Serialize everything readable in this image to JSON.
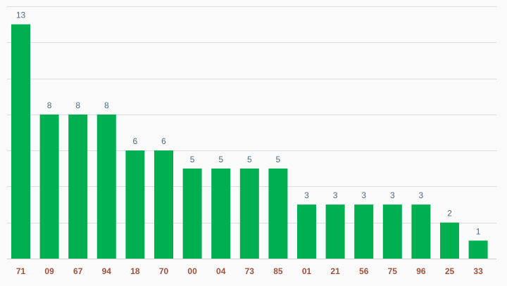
{
  "chart_data": {
    "type": "bar",
    "categories": [
      "71",
      "09",
      "67",
      "94",
      "18",
      "70",
      "00",
      "04",
      "73",
      "85",
      "01",
      "21",
      "56",
      "75",
      "96",
      "25",
      "33"
    ],
    "values": [
      13,
      8,
      8,
      8,
      6,
      6,
      5,
      5,
      5,
      5,
      3,
      3,
      3,
      3,
      3,
      2,
      1
    ],
    "title": "",
    "xlabel": "",
    "ylabel": "",
    "ylim": [
      0,
      14
    ],
    "grid": true,
    "bar_color": "#00b050",
    "value_label_color": "#4e6b84",
    "category_label_color": "#a0523d"
  }
}
